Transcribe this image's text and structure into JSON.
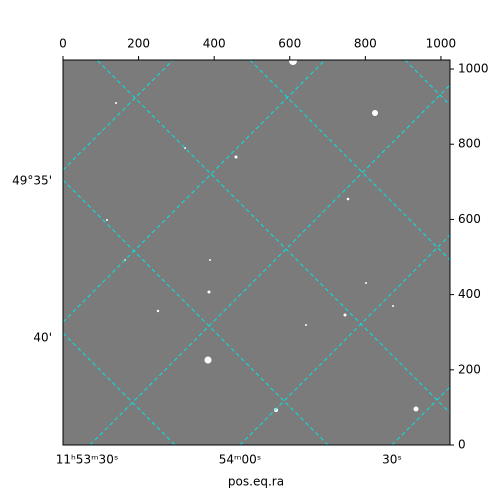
{
  "chart_data": {
    "type": "image",
    "x_label": "pos.eq.ra",
    "xlim": [
      0,
      1024
    ],
    "ylim": [
      0,
      1024
    ],
    "xticks": [
      0,
      200,
      400,
      600,
      800,
      1000
    ],
    "yticks": [
      0,
      200,
      400,
      600,
      800,
      1000
    ],
    "ra_labels": [
      "11ʰ53ᵐ30ˢ",
      "54ᵐ00ˢ",
      "30ˢ"
    ],
    "dec_labels": [
      "49°35'",
      "40'"
    ]
  }
}
